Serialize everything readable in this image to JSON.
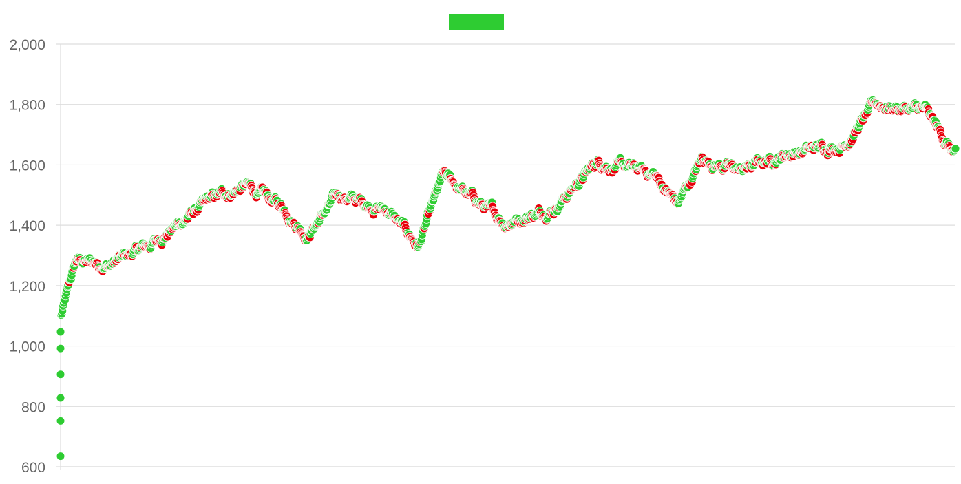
{
  "chart_data": {
    "type": "scatter",
    "title": "",
    "xlabel": "",
    "ylabel": "",
    "ylim": [
      600,
      2000
    ],
    "y_ticks": [
      600,
      800,
      1000,
      1200,
      1400,
      1600,
      1800,
      2000
    ],
    "y_tick_labels": [
      "600",
      "800",
      "1,000",
      "1,200",
      "1,400",
      "1,600",
      "1,800",
      "2,000"
    ],
    "grid": true,
    "legend": {
      "placement": "top-center",
      "entries": [
        {
          "label": "",
          "color": "#2ecc32"
        }
      ]
    },
    "colors": {
      "up": "#2ecc32",
      "down": "#e8000b",
      "grid": "#dddddd",
      "axis_text": "#666666"
    },
    "x_points": 1450,
    "initial_points": [
      {
        "x": 0,
        "y": 635
      },
      {
        "x": 0,
        "y": 752
      },
      {
        "x": 0,
        "y": 828
      },
      {
        "x": 0,
        "y": 906
      },
      {
        "x": 0,
        "y": 992
      },
      {
        "x": 0,
        "y": 1047
      }
    ],
    "trend": [
      {
        "x": 1,
        "y": 1100
      },
      {
        "x": 25,
        "y": 1280
      },
      {
        "x": 80,
        "y": 1270
      },
      {
        "x": 150,
        "y": 1340
      },
      {
        "x": 240,
        "y": 1480
      },
      {
        "x": 300,
        "y": 1530
      },
      {
        "x": 360,
        "y": 1460
      },
      {
        "x": 400,
        "y": 1370
      },
      {
        "x": 450,
        "y": 1500
      },
      {
        "x": 530,
        "y": 1450
      },
      {
        "x": 580,
        "y": 1330
      },
      {
        "x": 620,
        "y": 1560
      },
      {
        "x": 720,
        "y": 1410
      },
      {
        "x": 800,
        "y": 1460
      },
      {
        "x": 870,
        "y": 1610
      },
      {
        "x": 960,
        "y": 1570
      },
      {
        "x": 1000,
        "y": 1470
      },
      {
        "x": 1040,
        "y": 1620
      },
      {
        "x": 1100,
        "y": 1580
      },
      {
        "x": 1180,
        "y": 1640
      },
      {
        "x": 1270,
        "y": 1670
      },
      {
        "x": 1320,
        "y": 1800
      },
      {
        "x": 1400,
        "y": 1780
      },
      {
        "x": 1450,
        "y": 1630
      }
    ]
  }
}
